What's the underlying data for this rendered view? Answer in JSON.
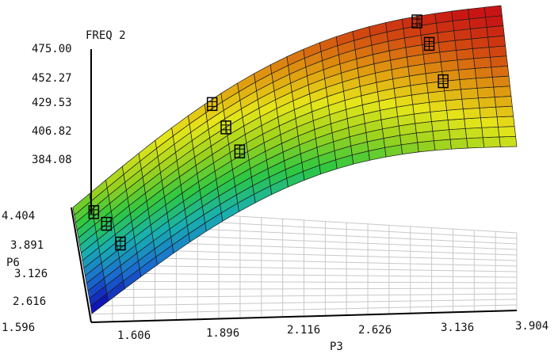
{
  "chart_data": {
    "type": "surface",
    "title": "",
    "zlabel": "FREQ 2",
    "xlabel": "P3",
    "ylabel": "P6",
    "z_ticks": [
      "475.00",
      "452.27",
      "429.53",
      "406.82",
      "384.08"
    ],
    "x_ticks": [
      "1.606",
      "1.896",
      "2.116",
      "2.626",
      "3.136",
      "3.904"
    ],
    "y_ticks": [
      "4.404",
      "3.891",
      "3.126",
      "2.616",
      "1.596"
    ],
    "xlim": [
      1.606,
      3.904
    ],
    "ylim": [
      1.596,
      4.404
    ],
    "zlim": [
      384.08,
      475.0
    ],
    "surface_colormap": [
      "#1010b4",
      "#1a6fd0",
      "#18b0b0",
      "#2ec840",
      "#9ad21e",
      "#e6e61a",
      "#e09a10",
      "#d24a10",
      "#c81414"
    ],
    "data_points": [
      {
        "x": 1.7,
        "y": 3.9,
        "z": 393
      },
      {
        "x": 1.75,
        "y": 3.4,
        "z": 386
      },
      {
        "x": 1.8,
        "y": 2.7,
        "z": 384
      },
      {
        "x": 2.35,
        "y": 4.3,
        "z": 452
      },
      {
        "x": 2.4,
        "y": 3.6,
        "z": 436
      },
      {
        "x": 2.45,
        "y": 2.9,
        "z": 410
      },
      {
        "x": 3.45,
        "y": 4.3,
        "z": 475
      },
      {
        "x": 3.5,
        "y": 3.8,
        "z": 466
      },
      {
        "x": 3.55,
        "y": 3.0,
        "z": 428
      }
    ],
    "grid": true
  }
}
